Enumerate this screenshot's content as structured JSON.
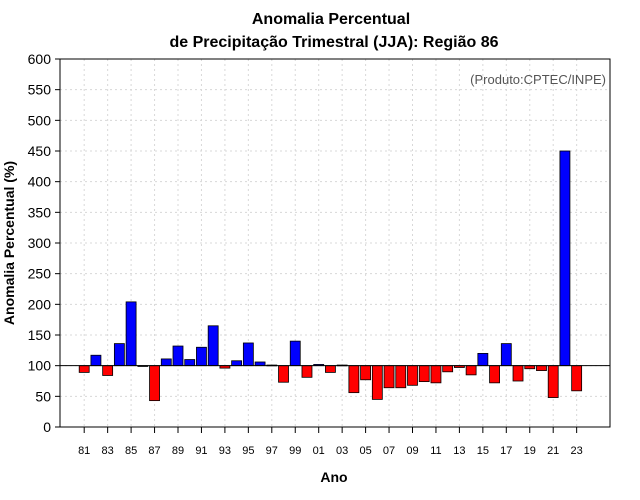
{
  "chart_data": {
    "type": "bar",
    "title_line1": "Anomalia Percentual",
    "title_line2": "de Precipitação Trimestral (JJA): Região 86",
    "xlabel": "Ano",
    "ylabel": "Anomalia Percentual (%)",
    "credit": "(Produto:CPTEC/INPE)",
    "ylim": [
      0,
      600
    ],
    "yticks": [
      0,
      50,
      100,
      150,
      200,
      250,
      300,
      350,
      400,
      450,
      500,
      550,
      600
    ],
    "baseline": 100,
    "grid": true,
    "categories": [
      "81",
      "82",
      "83",
      "84",
      "85",
      "86",
      "87",
      "88",
      "89",
      "90",
      "91",
      "92",
      "93",
      "94",
      "95",
      "96",
      "97",
      "98",
      "99",
      "00",
      "01",
      "02",
      "03",
      "04",
      "05",
      "06",
      "07",
      "08",
      "09",
      "10",
      "11",
      "12",
      "13",
      "14",
      "15",
      "16",
      "17",
      "18",
      "19",
      "20",
      "21",
      "22",
      "23"
    ],
    "xtick_labels": [
      "81",
      "83",
      "85",
      "87",
      "89",
      "91",
      "93",
      "95",
      "97",
      "99",
      "01",
      "03",
      "05",
      "07",
      "09",
      "11",
      "13",
      "15",
      "17",
      "19",
      "21",
      "23"
    ],
    "values": [
      89,
      117,
      84,
      136,
      204,
      99,
      43,
      111,
      132,
      110,
      130,
      165,
      96,
      108,
      137,
      106,
      101,
      73,
      140,
      81,
      102,
      89,
      101,
      56,
      77,
      45,
      64,
      64,
      68,
      74,
      72,
      90,
      97,
      85,
      120,
      72,
      136,
      75,
      95,
      92,
      48,
      450,
      59
    ],
    "colors": {
      "above": "#0000ff",
      "below": "#ff0000",
      "grid": "#d8d8d8"
    }
  }
}
